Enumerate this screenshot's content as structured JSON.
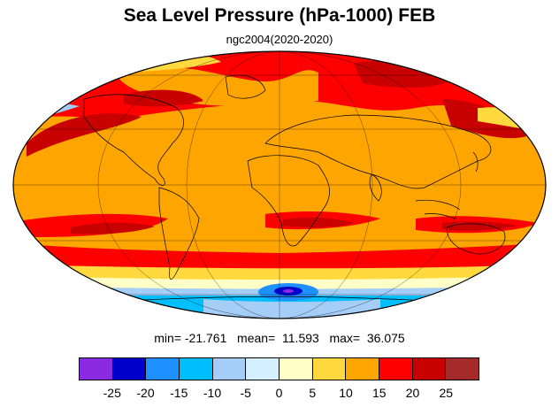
{
  "title": "Sea Level Pressure (hPa-1000) FEB",
  "subtitle": "ngc2004(2020-2020)",
  "stats": {
    "min": "min= -21.761",
    "mean": "mean=  11.593",
    "max": "max=  36.075"
  },
  "colorbar": {
    "colors": [
      "#8a2be2",
      "#0000cd",
      "#1e90ff",
      "#00bfff",
      "#a4cdf7",
      "#d4efff",
      "#ffffc8",
      "#ffd93d",
      "#ffa500",
      "#ff0000",
      "#c80000",
      "#a52a2a"
    ],
    "labels": [
      "-25",
      "-20",
      "-15",
      "-10",
      "-5",
      "0",
      "5",
      "10",
      "15",
      "20",
      "25"
    ]
  }
}
